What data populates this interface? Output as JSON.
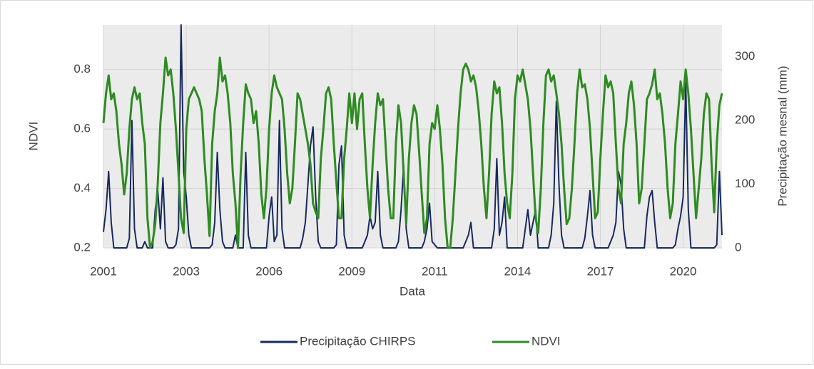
{
  "chart_data": {
    "type": "line",
    "x_label": "Data",
    "y_label": "NDVI",
    "y2_label": "Precipitação mesnal (mm)",
    "categories": [
      "2001",
      null,
      null,
      null,
      null,
      null,
      null,
      null,
      null,
      null,
      null,
      null,
      null,
      null,
      null,
      null,
      null,
      null,
      null,
      null,
      null,
      null,
      null,
      null,
      null,
      null,
      null,
      null,
      null,
      null,
      null,
      null,
      "2003",
      null,
      null,
      null,
      null,
      null,
      null,
      null,
      null,
      null,
      null,
      null,
      null,
      null,
      null,
      null,
      null,
      null,
      null,
      null,
      null,
      null,
      null,
      null,
      null,
      null,
      null,
      null,
      null,
      null,
      null,
      null,
      "2006",
      null,
      null,
      null,
      null,
      null,
      null,
      null,
      null,
      null,
      null,
      null,
      null,
      null,
      null,
      null,
      null,
      null,
      null,
      null,
      null,
      null,
      null,
      null,
      null,
      null,
      null,
      null,
      null,
      null,
      null,
      null,
      "2009",
      null,
      null,
      null,
      null,
      null,
      null,
      null,
      null,
      null,
      null,
      null,
      null,
      null,
      null,
      null,
      null,
      null,
      null,
      null,
      null,
      null,
      null,
      null,
      null,
      null,
      null,
      null,
      null,
      null,
      null,
      null,
      "2011",
      null,
      null,
      null,
      null,
      null,
      null,
      null,
      null,
      null,
      null,
      null,
      null,
      null,
      null,
      null,
      null,
      null,
      null,
      null,
      null,
      null,
      null,
      null,
      null,
      null,
      null,
      null,
      null,
      null,
      null,
      null,
      "2014",
      null,
      null,
      null,
      null,
      null,
      null,
      null,
      null,
      null,
      null,
      null,
      null,
      null,
      null,
      null,
      null,
      null,
      null,
      null,
      null,
      null,
      null,
      null,
      null,
      null,
      null,
      null,
      null,
      null,
      null,
      null,
      "2017",
      null,
      null,
      null,
      null,
      null,
      null,
      null,
      null,
      null,
      null,
      null,
      null,
      null,
      null,
      null,
      null,
      null,
      null,
      null,
      null,
      null,
      null,
      null,
      null,
      null,
      null,
      null,
      null,
      null,
      null,
      null,
      "2020",
      null,
      null,
      null,
      null,
      null,
      null,
      null,
      null,
      null,
      null,
      null,
      null,
      null,
      null,
      null
    ],
    "series": [
      {
        "name": "Precipitação CHIRPS",
        "color": "#17295e",
        "axis": "y2",
        "values": [
          25,
          60,
          120,
          40,
          0,
          0,
          0,
          0,
          0,
          0,
          15,
          200,
          30,
          0,
          0,
          0,
          10,
          0,
          0,
          0,
          60,
          90,
          30,
          110,
          10,
          0,
          0,
          0,
          5,
          30,
          350,
          120,
          80,
          20,
          0,
          0,
          0,
          0,
          0,
          0,
          0,
          0,
          5,
          40,
          150,
          60,
          10,
          0,
          0,
          0,
          0,
          20,
          0,
          0,
          0,
          150,
          20,
          0,
          0,
          0,
          0,
          0,
          0,
          0,
          50,
          80,
          10,
          20,
          200,
          30,
          0,
          0,
          0,
          0,
          0,
          0,
          0,
          15,
          40,
          100,
          160,
          190,
          80,
          10,
          0,
          0,
          0,
          0,
          0,
          0,
          5,
          130,
          160,
          20,
          0,
          0,
          0,
          0,
          0,
          0,
          0,
          10,
          20,
          50,
          30,
          40,
          120,
          20,
          0,
          0,
          0,
          0,
          0,
          0,
          10,
          60,
          130,
          30,
          0,
          0,
          0,
          0,
          0,
          0,
          10,
          30,
          70,
          10,
          5,
          0,
          0,
          0,
          0,
          0,
          0,
          0,
          0,
          0,
          0,
          0,
          10,
          20,
          40,
          0,
          0,
          0,
          0,
          0,
          0,
          0,
          0,
          30,
          140,
          20,
          40,
          80,
          0,
          0,
          0,
          0,
          0,
          0,
          0,
          30,
          60,
          20,
          40,
          60,
          0,
          0,
          0,
          0,
          0,
          20,
          70,
          230,
          100,
          20,
          0,
          0,
          0,
          0,
          0,
          0,
          0,
          0,
          15,
          50,
          90,
          20,
          0,
          0,
          0,
          0,
          0,
          0,
          10,
          20,
          40,
          120,
          100,
          30,
          0,
          0,
          0,
          0,
          0,
          0,
          0,
          0,
          50,
          80,
          90,
          40,
          0,
          0,
          0,
          0,
          0,
          0,
          0,
          5,
          30,
          50,
          80,
          260,
          60,
          0,
          0,
          0,
          0,
          0,
          0,
          0,
          0,
          0,
          0,
          5,
          120,
          20
        ]
      },
      {
        "name": "NDVI",
        "color": "#2e8b22",
        "values": [
          0.62,
          0.72,
          0.78,
          0.7,
          0.72,
          0.66,
          0.55,
          0.48,
          0.38,
          0.45,
          0.6,
          0.7,
          0.74,
          0.7,
          0.72,
          0.62,
          0.55,
          0.3,
          0.2,
          0.22,
          0.28,
          0.42,
          0.62,
          0.72,
          0.84,
          0.78,
          0.8,
          0.72,
          0.6,
          0.45,
          0.3,
          0.25,
          0.6,
          0.7,
          0.72,
          0.74,
          0.72,
          0.7,
          0.66,
          0.5,
          0.38,
          0.24,
          0.55,
          0.66,
          0.72,
          0.84,
          0.76,
          0.78,
          0.72,
          0.62,
          0.45,
          0.35,
          0.2,
          0.45,
          0.62,
          0.75,
          0.72,
          0.7,
          0.62,
          0.66,
          0.55,
          0.38,
          0.3,
          0.4,
          0.6,
          0.72,
          0.78,
          0.74,
          0.72,
          0.7,
          0.6,
          0.45,
          0.35,
          0.4,
          0.55,
          0.72,
          0.7,
          0.65,
          0.6,
          0.55,
          0.48,
          0.35,
          0.32,
          0.3,
          0.5,
          0.6,
          0.72,
          0.74,
          0.7,
          0.55,
          0.42,
          0.3,
          0.3,
          0.5,
          0.6,
          0.72,
          0.62,
          0.72,
          0.6,
          0.7,
          0.72,
          0.55,
          0.4,
          0.3,
          0.48,
          0.62,
          0.72,
          0.68,
          0.7,
          0.55,
          0.4,
          0.3,
          0.3,
          0.55,
          0.68,
          0.62,
          0.45,
          0.28,
          0.5,
          0.62,
          0.68,
          0.65,
          0.52,
          0.38,
          0.25,
          0.3,
          0.55,
          0.62,
          0.6,
          0.68,
          0.6,
          0.48,
          0.3,
          0.2,
          0.2,
          0.3,
          0.45,
          0.6,
          0.72,
          0.8,
          0.82,
          0.8,
          0.76,
          0.78,
          0.74,
          0.66,
          0.55,
          0.4,
          0.3,
          0.45,
          0.65,
          0.76,
          0.72,
          0.74,
          0.62,
          0.45,
          0.35,
          0.3,
          0.45,
          0.7,
          0.78,
          0.76,
          0.8,
          0.75,
          0.7,
          0.6,
          0.45,
          0.3,
          0.25,
          0.4,
          0.62,
          0.78,
          0.8,
          0.76,
          0.78,
          0.72,
          0.65,
          0.55,
          0.4,
          0.28,
          0.3,
          0.4,
          0.55,
          0.72,
          0.8,
          0.74,
          0.75,
          0.7,
          0.6,
          0.45,
          0.3,
          0.32,
          0.5,
          0.65,
          0.78,
          0.74,
          0.76,
          0.72,
          0.55,
          0.4,
          0.35,
          0.55,
          0.62,
          0.72,
          0.76,
          0.68,
          0.55,
          0.35,
          0.4,
          0.55,
          0.7,
          0.72,
          0.75,
          0.8,
          0.7,
          0.72,
          0.65,
          0.55,
          0.4,
          0.3,
          0.35,
          0.55,
          0.65,
          0.76,
          0.7,
          0.8,
          0.72,
          0.6,
          0.45,
          0.3,
          0.4,
          0.5,
          0.65,
          0.72,
          0.7,
          0.48,
          0.32,
          0.55,
          0.68,
          0.72
        ]
      }
    ],
    "ylim": [
      0.2,
      0.95
    ],
    "yticks": [
      0.2,
      0.4,
      0.6,
      0.8
    ],
    "y2lim": [
      0,
      350
    ],
    "y2ticks": [
      0,
      100,
      200,
      300
    ],
    "grid": true,
    "legend": "bottom"
  }
}
